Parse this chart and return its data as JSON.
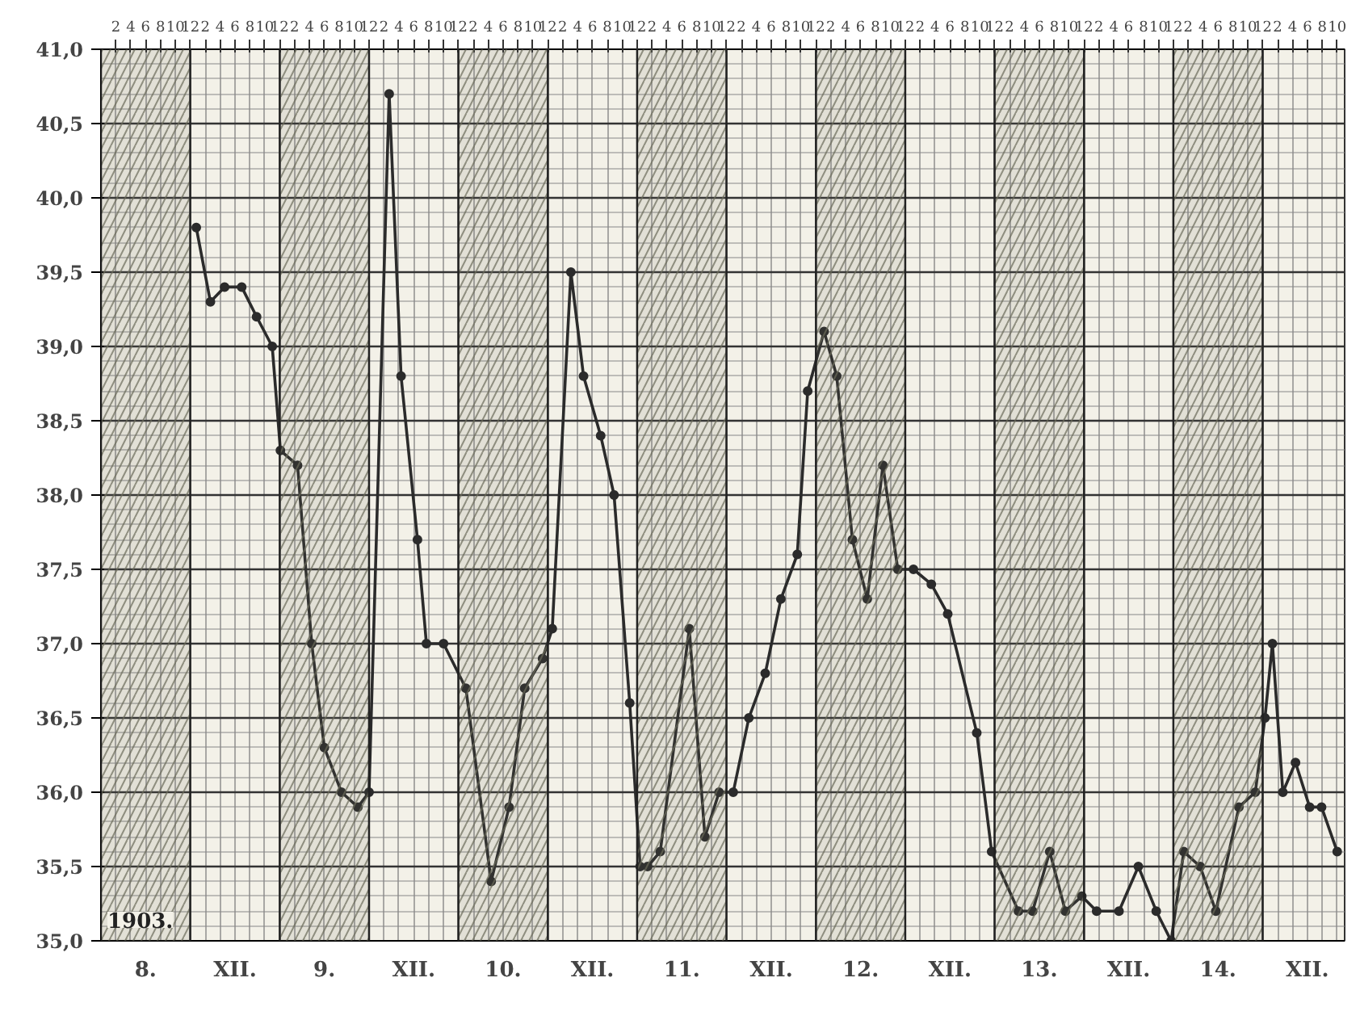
{
  "chart_data": {
    "type": "line",
    "x": [
      "1903-12-08T12:48",
      "1903-12-08T14:42",
      "1903-12-08T16:36",
      "1903-12-08T18:54",
      "1903-12-08T20:54",
      "1903-12-08T23:00",
      "1903-12-09T00:06",
      "1903-12-09T02:24",
      "1903-12-09T04:18",
      "1903-12-09T06:00",
      "1903-12-09T08:18",
      "1903-12-09T10:30",
      "1903-12-09T12:00",
      "1903-12-09T14:42",
      "1903-12-09T16:18",
      "1903-12-09T18:30",
      "1903-12-09T19:42",
      "1903-12-09T22:00",
      "1903-12-10T01:00",
      "1903-12-10T04:24",
      "1903-12-10T06:48",
      "1903-12-10T08:54",
      "1903-12-10T11:18",
      "1903-12-10T12:36",
      "1903-12-10T15:06",
      "1903-12-10T16:48",
      "1903-12-10T19:06",
      "1903-12-10T20:54",
      "1903-12-10T23:00",
      "1903-12-11T00:24",
      "1903-12-11T01:24",
      "1903-12-11T03:06",
      "1903-12-11T07:00",
      "1903-12-11T09:06",
      "1903-12-11T11:00",
      "1903-12-11T12:54",
      "1903-12-11T15:00",
      "1903-12-11T17:12",
      "1903-12-11T19:18",
      "1903-12-11T21:30",
      "1903-12-11T22:54",
      "1903-12-12T01:06",
      "1903-12-12T02:48",
      "1903-12-12T04:54",
      "1903-12-12T06:54",
      "1903-12-12T09:00",
      "1903-12-12T11:00",
      "1903-12-12T13:06",
      "1903-12-12T15:30",
      "1903-12-12T17:42",
      "1903-12-12T21:36",
      "1903-12-12T23:36",
      "1903-12-13T03:12",
      "1903-12-13T05:06",
      "1903-12-13T07:24",
      "1903-12-13T09:30",
      "1903-12-13T11:42",
      "1903-12-13T13:42",
      "1903-12-13T16:42",
      "1903-12-13T19:18",
      "1903-12-13T21:42",
      "1903-12-13T23:42",
      "1903-12-14T01:24",
      "1903-12-14T03:36",
      "1903-12-14T05:42",
      "1903-12-14T08:48",
      "1903-12-14T11:00",
      "1903-12-14T12:18",
      "1903-12-14T13:18",
      "1903-12-14T14:42",
      "1903-12-14T16:24",
      "1903-12-14T18:18",
      "1903-12-14T19:54",
      "1903-12-14T22:00"
    ],
    "values": [
      39.8,
      39.3,
      39.4,
      39.4,
      39.2,
      39.0,
      38.3,
      38.2,
      37.0,
      36.3,
      36.0,
      35.9,
      36.0,
      40.7,
      38.8,
      37.7,
      37.0,
      37.0,
      36.7,
      35.4,
      35.9,
      36.7,
      36.9,
      37.1,
      39.5,
      38.8,
      38.4,
      38.0,
      36.6,
      35.5,
      35.5,
      35.6,
      37.1,
      35.7,
      36.0,
      36.0,
      36.5,
      36.8,
      37.3,
      37.6,
      38.7,
      39.1,
      38.8,
      37.7,
      37.3,
      38.2,
      37.5,
      37.5,
      37.4,
      37.2,
      36.4,
      35.6,
      35.2,
      35.2,
      35.6,
      35.2,
      35.3,
      35.2,
      35.2,
      35.5,
      35.2,
      35.0,
      35.6,
      35.5,
      35.2,
      35.9,
      36.0,
      36.5,
      37.0,
      36.0,
      36.2,
      35.9,
      35.9,
      35.6
    ],
    "color": "#2b2b2b",
    "marker": "circle",
    "line_style": "solid",
    "ylim": [
      35.0,
      41.0
    ],
    "yticks": [
      {
        "value": 35.0,
        "label": "35,0"
      },
      {
        "value": 35.5,
        "label": "35,5"
      },
      {
        "value": 36.0,
        "label": "36,0"
      },
      {
        "value": 36.5,
        "label": "36,5"
      },
      {
        "value": 37.0,
        "label": "37,0"
      },
      {
        "value": 37.5,
        "label": "37,5"
      },
      {
        "value": 38.0,
        "label": "38,0"
      },
      {
        "value": 38.5,
        "label": "38,5"
      },
      {
        "value": 39.0,
        "label": "39,0"
      },
      {
        "value": 39.5,
        "label": "39,5"
      },
      {
        "value": 40.0,
        "label": "40,0"
      },
      {
        "value": 40.5,
        "label": "40,5"
      },
      {
        "value": 41.0,
        "label": "41,0"
      }
    ],
    "xlim": [
      "1903-12-08T00:00",
      "1903-12-14T23:00"
    ],
    "xticks": [
      {
        "value": "1903-12-08T06:00",
        "label": "8."
      },
      {
        "value": "1903-12-08T18:00",
        "label": "XII."
      },
      {
        "value": "1903-12-09T06:00",
        "label": "9."
      },
      {
        "value": "1903-12-09T18:00",
        "label": "XII."
      },
      {
        "value": "1903-12-10T06:00",
        "label": "10."
      },
      {
        "value": "1903-12-10T18:00",
        "label": "XII."
      },
      {
        "value": "1903-12-11T06:00",
        "label": "11."
      },
      {
        "value": "1903-12-11T18:00",
        "label": "XII."
      },
      {
        "value": "1903-12-12T06:00",
        "label": "12."
      },
      {
        "value": "1903-12-12T18:00",
        "label": "XII."
      },
      {
        "value": "1903-12-13T06:00",
        "label": "13."
      },
      {
        "value": "1903-12-13T18:00",
        "label": "XII."
      },
      {
        "value": "1903-12-14T06:00",
        "label": "14."
      },
      {
        "value": "1903-12-14T18:00",
        "label": "XII."
      }
    ],
    "x2lim": [
      "1903-12-08T00:00",
      "1903-12-14T23:00"
    ],
    "x2ticks": [
      {
        "value": "1903-12-08T02:00",
        "label": "2"
      },
      {
        "value": "1903-12-08T04:00",
        "label": "4"
      },
      {
        "value": "1903-12-08T06:00",
        "label": "6"
      },
      {
        "value": "1903-12-08T08:00",
        "label": "8"
      },
      {
        "value": "1903-12-08T10:00",
        "label": "10"
      },
      {
        "value": "1903-12-08T12:00",
        "label": "12"
      },
      {
        "value": "1903-12-08T14:00",
        "label": "2"
      },
      {
        "value": "1903-12-08T16:00",
        "label": "4"
      },
      {
        "value": "1903-12-08T18:00",
        "label": "6"
      },
      {
        "value": "1903-12-08T20:00",
        "label": "8"
      },
      {
        "value": "1903-12-08T22:00",
        "label": "10"
      },
      {
        "value": "1903-12-09T00:00",
        "label": "12"
      },
      {
        "value": "1903-12-09T02:00",
        "label": "2"
      },
      {
        "value": "1903-12-09T04:00",
        "label": "4"
      },
      {
        "value": "1903-12-09T06:00",
        "label": "6"
      },
      {
        "value": "1903-12-09T08:00",
        "label": "8"
      },
      {
        "value": "1903-12-09T10:00",
        "label": "10"
      },
      {
        "value": "1903-12-09T12:00",
        "label": "12"
      },
      {
        "value": "1903-12-09T14:00",
        "label": "2"
      },
      {
        "value": "1903-12-09T16:00",
        "label": "4"
      },
      {
        "value": "1903-12-09T18:00",
        "label": "6"
      },
      {
        "value": "1903-12-09T20:00",
        "label": "8"
      },
      {
        "value": "1903-12-09T22:00",
        "label": "10"
      },
      {
        "value": "1903-12-10T00:00",
        "label": "12"
      },
      {
        "value": "1903-12-10T02:00",
        "label": "2"
      },
      {
        "value": "1903-12-10T04:00",
        "label": "4"
      },
      {
        "value": "1903-12-10T06:00",
        "label": "6"
      },
      {
        "value": "1903-12-10T08:00",
        "label": "8"
      },
      {
        "value": "1903-12-10T10:00",
        "label": "10"
      },
      {
        "value": "1903-12-10T12:00",
        "label": "12"
      },
      {
        "value": "1903-12-10T14:00",
        "label": "2"
      },
      {
        "value": "1903-12-10T16:00",
        "label": "4"
      },
      {
        "value": "1903-12-10T18:00",
        "label": "6"
      },
      {
        "value": "1903-12-10T20:00",
        "label": "8"
      },
      {
        "value": "1903-12-10T22:00",
        "label": "10"
      },
      {
        "value": "1903-12-11T00:00",
        "label": "12"
      },
      {
        "value": "1903-12-11T02:00",
        "label": "2"
      },
      {
        "value": "1903-12-11T04:00",
        "label": "4"
      },
      {
        "value": "1903-12-11T06:00",
        "label": "6"
      },
      {
        "value": "1903-12-11T08:00",
        "label": "8"
      },
      {
        "value": "1903-12-11T10:00",
        "label": "10"
      },
      {
        "value": "1903-12-11T12:00",
        "label": "12"
      },
      {
        "value": "1903-12-11T14:00",
        "label": "2"
      },
      {
        "value": "1903-12-11T16:00",
        "label": "4"
      },
      {
        "value": "1903-12-11T18:00",
        "label": "6"
      },
      {
        "value": "1903-12-11T20:00",
        "label": "8"
      },
      {
        "value": "1903-12-11T22:00",
        "label": "10"
      },
      {
        "value": "1903-12-12T00:00",
        "label": "12"
      },
      {
        "value": "1903-12-12T02:00",
        "label": "2"
      },
      {
        "value": "1903-12-12T04:00",
        "label": "4"
      },
      {
        "value": "1903-12-12T06:00",
        "label": "6"
      },
      {
        "value": "1903-12-12T08:00",
        "label": "8"
      },
      {
        "value": "1903-12-12T10:00",
        "label": "10"
      },
      {
        "value": "1903-12-12T12:00",
        "label": "12"
      },
      {
        "value": "1903-12-12T14:00",
        "label": "2"
      },
      {
        "value": "1903-12-12T16:00",
        "label": "4"
      },
      {
        "value": "1903-12-12T18:00",
        "label": "6"
      },
      {
        "value": "1903-12-12T20:00",
        "label": "8"
      },
      {
        "value": "1903-12-12T22:00",
        "label": "10"
      },
      {
        "value": "1903-12-13T00:00",
        "label": "12"
      },
      {
        "value": "1903-12-13T02:00",
        "label": "2"
      },
      {
        "value": "1903-12-13T04:00",
        "label": "4"
      },
      {
        "value": "1903-12-13T06:00",
        "label": "6"
      },
      {
        "value": "1903-12-13T08:00",
        "label": "8"
      },
      {
        "value": "1903-12-13T10:00",
        "label": "10"
      },
      {
        "value": "1903-12-13T12:00",
        "label": "12"
      },
      {
        "value": "1903-12-13T14:00",
        "label": "2"
      },
      {
        "value": "1903-12-13T16:00",
        "label": "4"
      },
      {
        "value": "1903-12-13T18:00",
        "label": "6"
      },
      {
        "value": "1903-12-13T20:00",
        "label": "8"
      },
      {
        "value": "1903-12-13T22:00",
        "label": "10"
      },
      {
        "value": "1903-12-14T00:00",
        "label": "12"
      },
      {
        "value": "1903-12-14T02:00",
        "label": "2"
      },
      {
        "value": "1903-12-14T04:00",
        "label": "4"
      },
      {
        "value": "1903-12-14T06:00",
        "label": "6"
      },
      {
        "value": "1903-12-14T08:00",
        "label": "8"
      },
      {
        "value": "1903-12-14T10:00",
        "label": "10"
      },
      {
        "value": "1903-12-14T12:00",
        "label": "12"
      },
      {
        "value": "1903-12-14T14:00",
        "label": "2"
      },
      {
        "value": "1903-12-14T16:00",
        "label": "4"
      },
      {
        "value": "1903-12-14T18:00",
        "label": "6"
      },
      {
        "value": "1903-12-14T20:00",
        "label": "8"
      },
      {
        "value": "1903-12-14T22:00",
        "label": "10"
      }
    ],
    "bands": [
      {
        "axis": "x",
        "from": "1903-12-08T00:00",
        "to": "1903-12-08T12:00",
        "color": "#6b6b5a"
      },
      {
        "axis": "x",
        "from": "1903-12-09T00:00",
        "to": "1903-12-09T12:00",
        "color": "#6b6b5a"
      },
      {
        "axis": "x",
        "from": "1903-12-10T00:00",
        "to": "1903-12-10T12:00",
        "color": "#6b6b5a"
      },
      {
        "axis": "x",
        "from": "1903-12-11T00:00",
        "to": "1903-12-11T12:00",
        "color": "#6b6b5a"
      },
      {
        "axis": "x",
        "from": "1903-12-12T00:00",
        "to": "1903-12-12T12:00",
        "color": "#6b6b5a"
      },
      {
        "axis": "x",
        "from": "1903-12-13T00:00",
        "to": "1903-12-13T12:00",
        "color": "#6b6b5a"
      },
      {
        "axis": "x",
        "from": "1903-12-14T00:00",
        "to": "1903-12-14T12:00",
        "color": "#6b6b5a"
      }
    ],
    "annotations": [
      "1903."
    ],
    "grid": true
  }
}
